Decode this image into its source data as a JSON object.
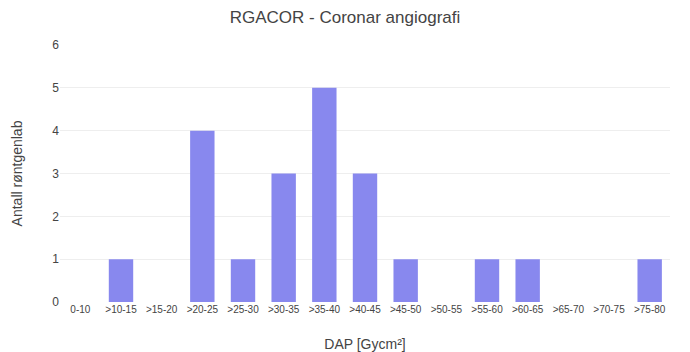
{
  "chart_data": {
    "type": "bar",
    "title": "RGACOR - Coronar angiografi",
    "xlabel": "DAP [Gycm²]",
    "ylabel": "Antall røntgenlab",
    "categories": [
      "0-10",
      ">10-15",
      ">15-20",
      ">20-25",
      ">25-30",
      ">30-35",
      ">35-40",
      ">40-45",
      ">45-50",
      ">50-55",
      ">55-60",
      ">60-65",
      ">65-70",
      ">70-75",
      ">75-80"
    ],
    "values": [
      0,
      1,
      0,
      4,
      1,
      3,
      5,
      3,
      1,
      0,
      1,
      1,
      0,
      0,
      1
    ],
    "color": "#8888ee",
    "ylim": [
      0,
      6
    ],
    "yticks": [
      0,
      1,
      2,
      3,
      4,
      5,
      6
    ],
    "grid": true
  }
}
